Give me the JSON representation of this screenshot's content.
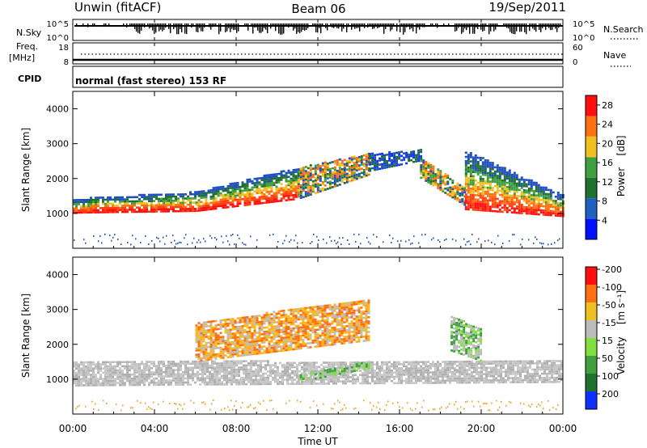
{
  "header": {
    "left_title": "Unwin (fitACF)",
    "center_title": "Beam 06",
    "right_title": "19/Sep/2011"
  },
  "strips": {
    "nsky": {
      "label": "N.Sky",
      "ticks": [
        "10^5",
        "10^0"
      ],
      "right_label": "N.Search",
      "right_ticks": [
        "10^5",
        "10^0"
      ]
    },
    "freq": {
      "label": "Freq.",
      "unit": "[MHz]",
      "ticks": [
        "18",
        "8"
      ],
      "right_label": "Nave",
      "right_ticks": [
        "60",
        "0"
      ]
    },
    "cpid": {
      "label": "CPID",
      "text": "normal (fast stereo) 153 RF"
    }
  },
  "colors": {
    "power_low": "#1030ff",
    "power_high": "#ff1010",
    "velocity_neg": "#ff1010",
    "velocity_pos": "#1030ff",
    "ground_scatter": "#bcbcbc"
  },
  "chart_data": [
    {
      "type": "heatmap",
      "name": "power",
      "xlabel": "",
      "ylabel": "Slant Range [km]",
      "xlim": [
        0,
        24
      ],
      "ylim": [
        0,
        4500
      ],
      "yticks": [
        1000,
        2000,
        3000,
        4000
      ],
      "colorbar": {
        "label": "Power",
        "unit": "[dB]",
        "ticks": [
          4,
          8,
          12,
          16,
          20,
          24,
          28
        ],
        "range": [
          0,
          30
        ],
        "colors": [
          "#0010ff",
          "#2060c0",
          "#207030",
          "#40a040",
          "#f0c020",
          "#ff7010",
          "#ff1010"
        ]
      },
      "bands": [
        {
          "from": 0.0,
          "to": 6.0,
          "lower": [
            1000,
            1050
          ],
          "upper": [
            1400,
            1600
          ],
          "level": "high"
        },
        {
          "from": 6.0,
          "to": 11.0,
          "lower": [
            1050,
            1400
          ],
          "upper": [
            1600,
            2300
          ],
          "level": "high"
        },
        {
          "from": 11.0,
          "to": 14.5,
          "lower": [
            1400,
            2100
          ],
          "upper": [
            2300,
            2700
          ],
          "level": "mid"
        },
        {
          "from": 14.5,
          "to": 17.0,
          "lower": [
            2200,
            2500
          ],
          "upper": [
            2700,
            2800
          ],
          "level": "low"
        },
        {
          "from": 17.0,
          "to": 19.2,
          "lower": [
            2000,
            1200
          ],
          "upper": [
            2600,
            1700
          ],
          "level": "mid"
        },
        {
          "from": 19.2,
          "to": 24.0,
          "lower": [
            1100,
            900
          ],
          "upper": [
            2800,
            1500
          ],
          "level": "high"
        }
      ]
    },
    {
      "type": "heatmap",
      "name": "velocity",
      "xlabel": "Time UT",
      "ylabel": "Slant Range [km]",
      "xlim": [
        0,
        24
      ],
      "ylim": [
        0,
        4500
      ],
      "xticks": [
        "00:00",
        "04:00",
        "08:00",
        "12:00",
        "16:00",
        "20:00",
        "00:00"
      ],
      "yticks": [
        1000,
        2000,
        3000,
        4000
      ],
      "colorbar": {
        "label": "Velocity",
        "unit": "[m s⁻¹]",
        "ticks": [
          200,
          100,
          50,
          15,
          -15,
          -50,
          -100,
          -200
        ],
        "colors": [
          "#1030ff",
          "#207030",
          "#40a040",
          "#80e040",
          "#bcbcbc",
          "#f0c020",
          "#ff7010",
          "#ff1010"
        ]
      },
      "bands": [
        {
          "from": 0.0,
          "to": 24.0,
          "lower": [
            800,
            900
          ],
          "upper": [
            1500,
            1500
          ],
          "level": "ground"
        },
        {
          "from": 6.0,
          "to": 14.5,
          "lower": [
            1500,
            2100
          ],
          "upper": [
            2600,
            3300
          ],
          "level": "negative"
        },
        {
          "from": 18.5,
          "to": 20.0,
          "lower": [
            1800,
            1500
          ],
          "upper": [
            2800,
            2400
          ],
          "level": "positive"
        },
        {
          "from": 11.0,
          "to": 14.5,
          "lower": [
            900,
            1300
          ],
          "upper": [
            1100,
            1500
          ],
          "level": "positive"
        }
      ]
    }
  ]
}
